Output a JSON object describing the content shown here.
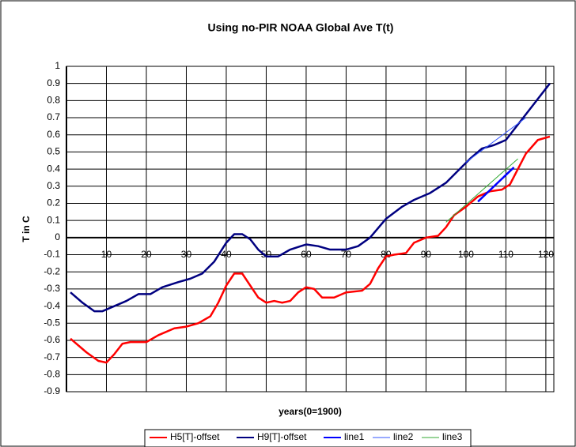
{
  "chart_data": {
    "type": "line",
    "title": "Using no-PIR NOAA Global Ave T(t)",
    "xlabel": "years(0=1900)",
    "ylabel": "T in C",
    "xlim": [
      0,
      122
    ],
    "xticks": [
      10,
      20,
      30,
      40,
      50,
      60,
      70,
      80,
      90,
      100,
      110,
      120
    ],
    "ylim": [
      -0.9,
      1
    ],
    "yticks": [
      -0.9,
      -0.8,
      -0.7,
      -0.6,
      -0.5,
      -0.4,
      -0.3,
      -0.2,
      -0.1,
      0,
      0.1,
      0.2,
      0.3,
      0.4,
      0.5,
      0.6,
      0.7,
      0.8,
      0.9,
      1
    ],
    "grid": true,
    "legend": "bottom",
    "series": [
      {
        "name": "H5[T]-offset",
        "color": "#ff0000",
        "width": 2.5,
        "x": [
          1,
          5,
          8,
          10,
          12,
          14,
          16,
          20,
          23,
          27,
          30,
          33,
          36,
          38,
          40,
          42,
          44,
          46,
          48,
          50,
          52,
          54,
          56,
          58,
          60,
          62,
          64,
          67,
          70,
          74,
          76,
          78,
          80,
          82,
          85,
          87,
          90,
          93,
          95,
          97,
          100,
          103,
          106,
          109,
          111,
          113,
          115,
          118,
          121
        ],
        "values": [
          -0.59,
          -0.67,
          -0.72,
          -0.73,
          -0.68,
          -0.62,
          -0.61,
          -0.61,
          -0.57,
          -0.53,
          -0.52,
          -0.5,
          -0.46,
          -0.38,
          -0.28,
          -0.21,
          -0.21,
          -0.28,
          -0.35,
          -0.38,
          -0.37,
          -0.38,
          -0.37,
          -0.32,
          -0.29,
          -0.3,
          -0.35,
          -0.35,
          -0.32,
          -0.31,
          -0.27,
          -0.18,
          -0.11,
          -0.1,
          -0.09,
          -0.03,
          0.0,
          0.01,
          0.06,
          0.13,
          0.18,
          0.24,
          0.27,
          0.28,
          0.31,
          0.4,
          0.49,
          0.57,
          0.59
        ]
      },
      {
        "name": "H9[T]-offset",
        "color": "#000080",
        "width": 2.5,
        "x": [
          1,
          4,
          7,
          9,
          12,
          15,
          18,
          21,
          24,
          28,
          31,
          34,
          37,
          40,
          42,
          44,
          46,
          48,
          50,
          53,
          56,
          60,
          63,
          66,
          70,
          73,
          76,
          80,
          84,
          87,
          91,
          95,
          98,
          101,
          104,
          107,
          110,
          113,
          117,
          121
        ],
        "values": [
          -0.32,
          -0.38,
          -0.43,
          -0.43,
          -0.4,
          -0.37,
          -0.33,
          -0.33,
          -0.29,
          -0.26,
          -0.24,
          -0.21,
          -0.14,
          -0.03,
          0.02,
          0.02,
          -0.01,
          -0.07,
          -0.11,
          -0.11,
          -0.07,
          -0.04,
          -0.05,
          -0.07,
          -0.07,
          -0.05,
          0.0,
          0.11,
          0.18,
          0.22,
          0.26,
          0.32,
          0.39,
          0.46,
          0.52,
          0.54,
          0.57,
          0.66,
          0.78,
          0.9
        ]
      },
      {
        "name": "line1",
        "color": "#0000ff",
        "width": 2.5,
        "x": [
          103,
          112
        ],
        "values": [
          0.21,
          0.41
        ]
      },
      {
        "name": "line2",
        "color": "#3355ff",
        "width": 1,
        "x": [
          100,
          115
        ],
        "values": [
          0.44,
          0.7
        ]
      },
      {
        "name": "line3",
        "color": "#33aa33",
        "width": 1,
        "x": [
          95,
          113
        ],
        "values": [
          0.09,
          0.46
        ]
      }
    ]
  }
}
